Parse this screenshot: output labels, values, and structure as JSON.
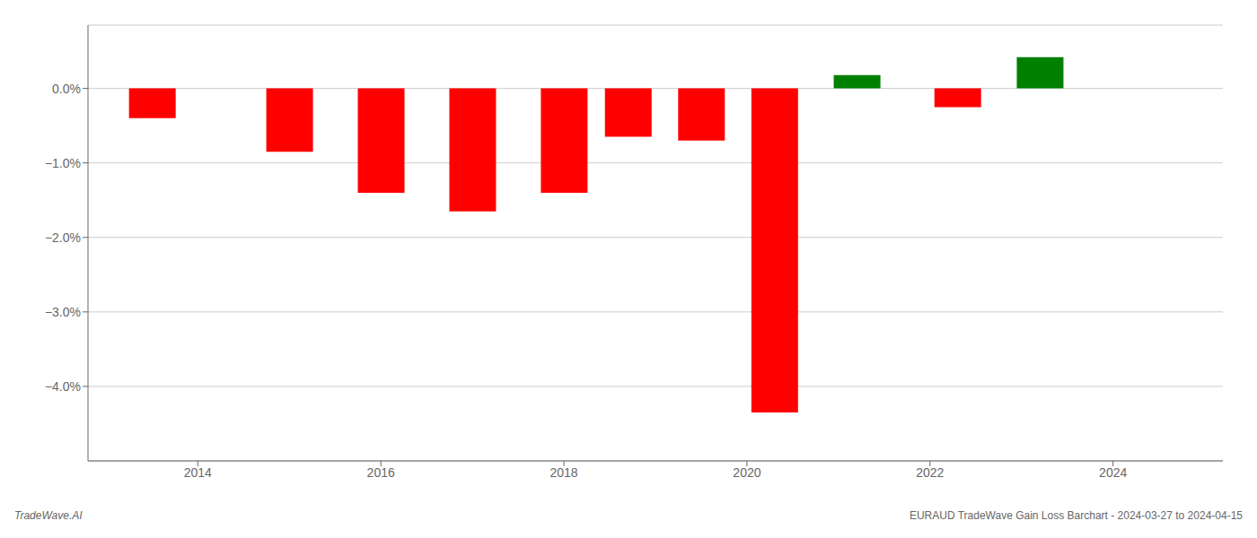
{
  "chart_data": {
    "type": "bar",
    "x": [
      2013.5,
      2015.0,
      2016.0,
      2017.0,
      2018.0,
      2018.7,
      2019.5,
      2020.3,
      2021.2,
      2022.3,
      2023.2
    ],
    "values": [
      -0.004,
      -0.0085,
      -0.014,
      -0.0165,
      -0.014,
      -0.0065,
      -0.007,
      -0.0435,
      0.0018,
      -0.0025,
      0.0042
    ],
    "colors": [
      "#FF0000",
      "#FF0000",
      "#FF0000",
      "#FF0000",
      "#FF0000",
      "#FF0000",
      "#FF0000",
      "#FF0000",
      "#008000",
      "#FF0000",
      "#008000"
    ],
    "xlim": [
      2012.8,
      2025.2
    ],
    "xticks": [
      2014,
      2016,
      2018,
      2020,
      2022,
      2024
    ],
    "ylim": [
      -0.05,
      0.0085
    ],
    "yticks": [
      {
        "value": 0.0,
        "label": "0.0%"
      },
      {
        "value": -0.01,
        "label": "−1.0%"
      },
      {
        "value": -0.02,
        "label": "−2.0%"
      },
      {
        "value": -0.03,
        "label": "−3.0%"
      },
      {
        "value": -0.04,
        "label": "−4.0%"
      }
    ],
    "grid": true,
    "annotations": [
      "TradeWave.AI",
      "EURAUD TradeWave Gain Loss Barchart - 2024-03-27 to 2024-04-15"
    ]
  }
}
